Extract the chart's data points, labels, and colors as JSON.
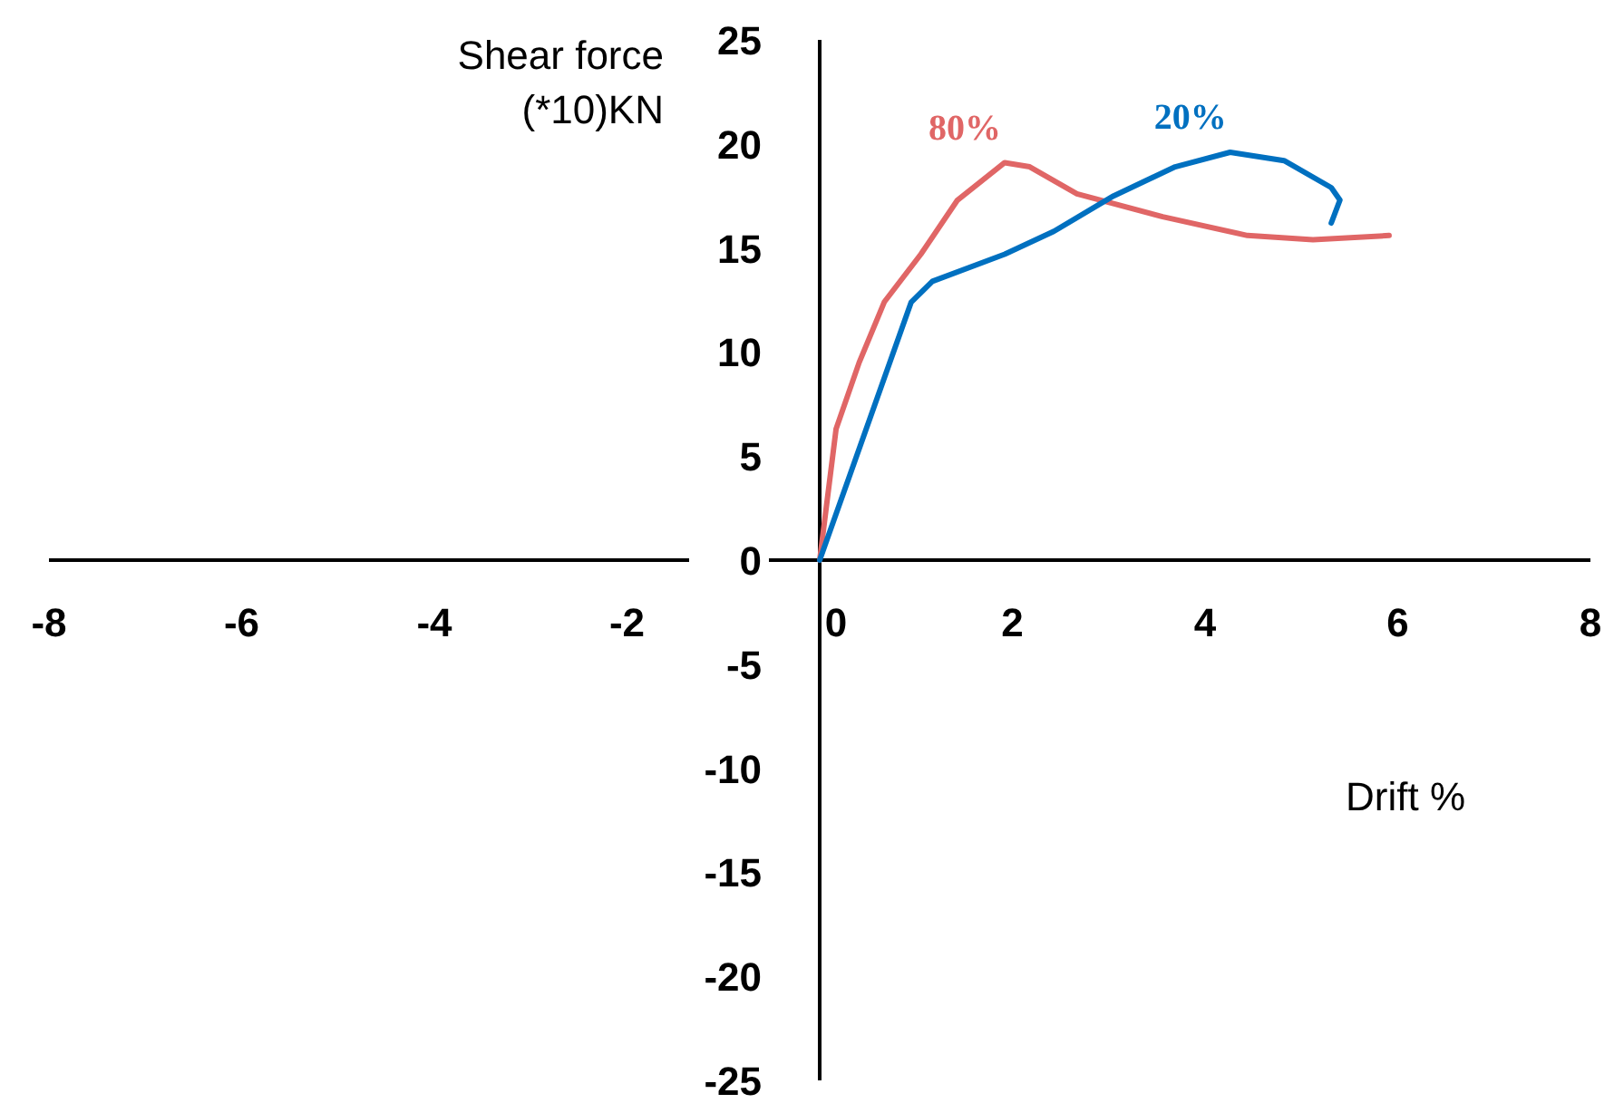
{
  "chart_data": {
    "type": "line",
    "xlabel": "Drift %",
    "ylabel": "Shear force (*10)KN",
    "xlim": [
      -8,
      8
    ],
    "xticks": [
      -8,
      -6,
      -4,
      -2,
      0,
      2,
      4,
      6,
      8
    ],
    "ylim": [
      -25,
      25
    ],
    "yticks": [
      -25,
      -20,
      -15,
      -10,
      -5,
      0,
      5,
      10,
      15,
      20,
      25
    ],
    "grid": false,
    "legend": false,
    "marker": "none",
    "line_style": "solid",
    "series": [
      {
        "name": "80%",
        "color": "#e06666",
        "x": [
          0,
          0.17,
          0.41,
          0.67,
          1.05,
          1.43,
          1.92,
          2.18,
          2.67,
          3.56,
          4.44,
          5.12,
          5.91
        ],
        "values": [
          0,
          6.3,
          9.5,
          12.4,
          14.7,
          17.3,
          19.1,
          18.9,
          17.6,
          16.5,
          15.6,
          15.4,
          15.6
        ]
      },
      {
        "name": "20%",
        "color": "#0070c0",
        "x": [
          0,
          0.95,
          1.17,
          1.92,
          2.43,
          3.05,
          3.69,
          4.26,
          4.82,
          5.31,
          5.4,
          5.31
        ],
        "values": [
          0,
          12.4,
          13.4,
          14.7,
          15.8,
          17.5,
          18.9,
          19.6,
          19.2,
          17.9,
          17.3,
          16.2
        ]
      }
    ]
  }
}
